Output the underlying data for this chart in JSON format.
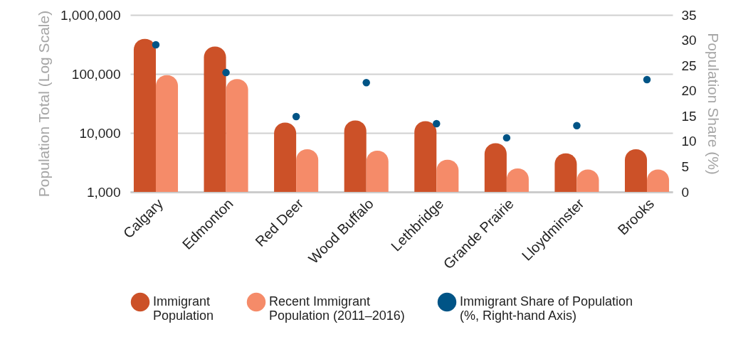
{
  "chart_data": {
    "type": "bar",
    "ylabel": "Population Total (Log Scale)",
    "y2label": "Population Share (%)",
    "categories": [
      "Calgary",
      "Edmonton",
      "Red Deer",
      "Wood Buffalo",
      "Lethbridge",
      "Grande Prairie",
      "Lloydminster",
      "Brooks"
    ],
    "series": [
      {
        "name": "Immigrant Population",
        "color": "#cc5128",
        "values": [
          393000,
          291000,
          15000,
          16300,
          15800,
          6700,
          4500,
          5300
        ]
      },
      {
        "name": "Recent Immigrant Population (2011–2016)",
        "color": "#f58b69",
        "values": [
          95000,
          82000,
          5300,
          5000,
          3500,
          2500,
          2400,
          2400
        ]
      },
      {
        "name": "Immigrant Share of Population (%, Right-hand Axis)",
        "type": "scatter",
        "axis": "y2",
        "color": "#005486",
        "values": [
          29.1,
          23.6,
          14.9,
          21.6,
          13.5,
          10.7,
          13.1,
          22.2
        ]
      }
    ],
    "log": "y",
    "ylim": [
      1000,
      1000000
    ],
    "yticks": [
      {
        "value": 1000,
        "label": "1,000"
      },
      {
        "value": 10000,
        "label": "10,000"
      },
      {
        "value": 100000,
        "label": "100,000"
      },
      {
        "value": 1000000,
        "label": "1,000,000"
      }
    ],
    "y2lim": [
      0,
      35
    ],
    "y2ticks": [
      0,
      5,
      10,
      15,
      20,
      25,
      30,
      35
    ],
    "grid": "y",
    "legend": "bottom",
    "marker": "circle"
  }
}
